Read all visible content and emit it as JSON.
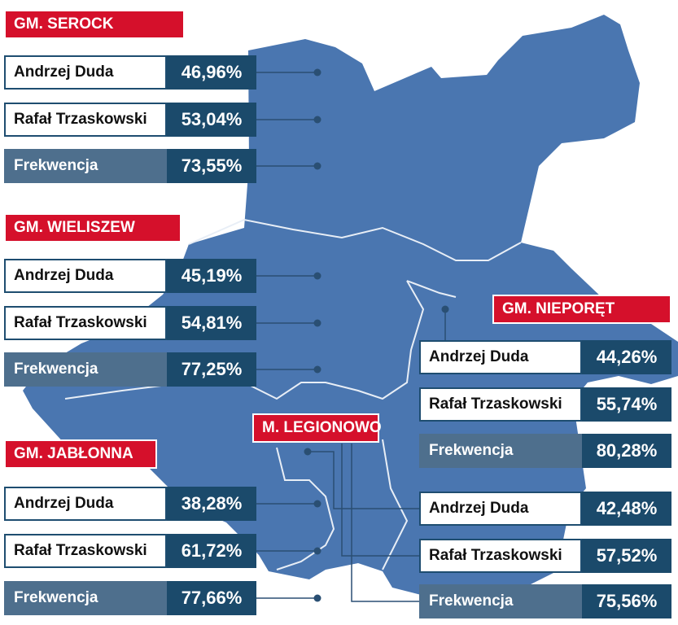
{
  "regions": [
    {
      "title": "GM. SEROCK",
      "rows": [
        {
          "label": "Andrzej Duda",
          "value": "46,96%"
        },
        {
          "label": "Rafał Trzaskowski",
          "value": "53,04%"
        },
        {
          "label": "Frekwencja",
          "value": "73,55%"
        }
      ]
    },
    {
      "title": "GM. WIELISZEW",
      "rows": [
        {
          "label": "Andrzej Duda",
          "value": "45,19%"
        },
        {
          "label": "Rafał Trzaskowski",
          "value": "54,81%"
        },
        {
          "label": "Frekwencja",
          "value": "77,25%"
        }
      ]
    },
    {
      "title": "GM. JABŁONNA",
      "rows": [
        {
          "label": "Andrzej Duda",
          "value": "38,28%"
        },
        {
          "label": "Rafał Trzaskowski",
          "value": "61,72%"
        },
        {
          "label": "Frekwencja",
          "value": "77,66%"
        }
      ]
    },
    {
      "title": "GM. NIEPORĘT",
      "rows": [
        {
          "label": "Andrzej Duda",
          "value": "44,26%"
        },
        {
          "label": "Rafał Trzaskowski",
          "value": "55,74%"
        },
        {
          "label": "Frekwencja",
          "value": "80,28%"
        }
      ]
    },
    {
      "title": "M. LEGIONOWO",
      "rows": [
        {
          "label": "Andrzej Duda",
          "value": "42,48%"
        },
        {
          "label": "Rafał Trzaskowski",
          "value": "57,52%"
        },
        {
          "label": "Frekwencja",
          "value": "75,56%"
        }
      ]
    }
  ]
}
